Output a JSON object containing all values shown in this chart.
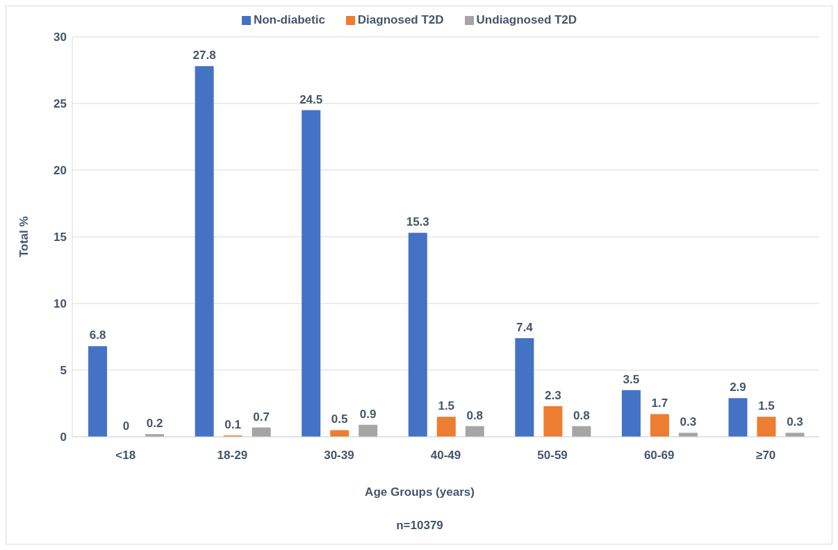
{
  "chart_data": {
    "type": "bar",
    "xlabel": "Age Groups (years)",
    "ylabel": "Total %",
    "categories": [
      "<18",
      "18-29",
      "30-39",
      "40-49",
      "50-59",
      "60-69",
      "≥70"
    ],
    "series": [
      {
        "name": "Non-diabetic",
        "color": "#4472c4",
        "values": [
          6.8,
          27.8,
          24.5,
          15.3,
          7.4,
          3.5,
          2.9
        ]
      },
      {
        "name": "Diagnosed T2D",
        "color": "#ed7d31",
        "values": [
          0,
          0.1,
          0.5,
          1.5,
          2.3,
          1.7,
          1.5
        ]
      },
      {
        "name": "Undiagnosed T2D",
        "color": "#a5a5a5",
        "values": [
          0.2,
          0.7,
          0.9,
          0.8,
          0.8,
          0.3,
          0.3
        ]
      }
    ],
    "ylim": [
      0,
      30
    ],
    "yticks": [
      0,
      5,
      10,
      15,
      20,
      25,
      30
    ],
    "grid": "y",
    "legend": "top",
    "data_labels": true,
    "annotations": [
      "n=10379"
    ]
  }
}
